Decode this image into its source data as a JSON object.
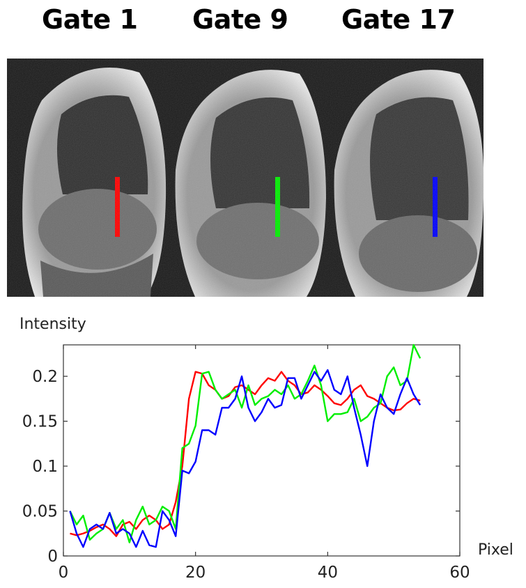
{
  "gates": [
    {
      "title": "Gate 1",
      "marker_color": "#ff0000"
    },
    {
      "title": "Gate 9",
      "marker_color": "#00ee00"
    },
    {
      "title": "Gate 17",
      "marker_color": "#0000ff"
    }
  ],
  "chart_data": {
    "type": "line",
    "title": "",
    "xlabel": "Pixel",
    "ylabel": "Intensity",
    "xlim": [
      0,
      60
    ],
    "ylim": [
      0,
      0.235
    ],
    "xticks": [
      0,
      20,
      40,
      60
    ],
    "xtick_labels": [
      "0",
      "20",
      "40",
      "60"
    ],
    "yticks": [
      0,
      0.05,
      0.1,
      0.15,
      0.2
    ],
    "ytick_labels": [
      "0",
      "0.05",
      "0.1",
      "0.15",
      "0.2"
    ],
    "grid": false,
    "x": [
      1,
      2,
      3,
      4,
      5,
      6,
      7,
      8,
      9,
      10,
      11,
      12,
      13,
      14,
      15,
      16,
      17,
      18,
      19,
      20,
      21,
      22,
      23,
      24,
      25,
      26,
      27,
      28,
      29,
      30,
      31,
      32,
      33,
      34,
      35,
      36,
      37,
      38,
      39,
      40,
      41,
      42,
      43,
      44,
      45,
      46,
      47,
      48,
      49,
      50,
      51,
      52,
      53,
      54
    ],
    "series": [
      {
        "color": "#ff0000",
        "values": [
          0.025,
          0.023,
          0.025,
          0.028,
          0.032,
          0.035,
          0.03,
          0.022,
          0.035,
          0.038,
          0.03,
          0.04,
          0.045,
          0.04,
          0.03,
          0.035,
          0.06,
          0.1,
          0.175,
          0.205,
          0.203,
          0.19,
          0.185,
          0.175,
          0.178,
          0.188,
          0.19,
          0.185,
          0.18,
          0.19,
          0.198,
          0.195,
          0.205,
          0.195,
          0.19,
          0.18,
          0.182,
          0.19,
          0.185,
          0.178,
          0.17,
          0.168,
          0.175,
          0.185,
          0.19,
          0.178,
          0.175,
          0.17,
          0.165,
          0.162,
          0.163,
          0.17,
          0.175,
          0.173
        ]
      },
      {
        "color": "#00ee00",
        "values": [
          0.05,
          0.035,
          0.045,
          0.018,
          0.025,
          0.03,
          0.048,
          0.03,
          0.04,
          0.015,
          0.04,
          0.055,
          0.035,
          0.04,
          0.055,
          0.05,
          0.03,
          0.12,
          0.125,
          0.145,
          0.203,
          0.205,
          0.185,
          0.175,
          0.18,
          0.185,
          0.165,
          0.19,
          0.168,
          0.175,
          0.178,
          0.185,
          0.18,
          0.19,
          0.175,
          0.18,
          0.195,
          0.212,
          0.19,
          0.15,
          0.158,
          0.158,
          0.16,
          0.175,
          0.15,
          0.155,
          0.165,
          0.17,
          0.2,
          0.21,
          0.19,
          0.195,
          0.235,
          0.22
        ]
      },
      {
        "color": "#0000ff",
        "values": [
          0.05,
          0.025,
          0.01,
          0.03,
          0.035,
          0.03,
          0.048,
          0.025,
          0.03,
          0.025,
          0.01,
          0.028,
          0.012,
          0.01,
          0.05,
          0.04,
          0.022,
          0.095,
          0.092,
          0.105,
          0.14,
          0.14,
          0.135,
          0.165,
          0.165,
          0.175,
          0.2,
          0.165,
          0.15,
          0.16,
          0.175,
          0.165,
          0.168,
          0.198,
          0.198,
          0.175,
          0.19,
          0.205,
          0.195,
          0.207,
          0.185,
          0.18,
          0.2,
          0.165,
          0.135,
          0.1,
          0.15,
          0.18,
          0.165,
          0.158,
          0.18,
          0.198,
          0.18,
          0.168
        ]
      }
    ]
  }
}
